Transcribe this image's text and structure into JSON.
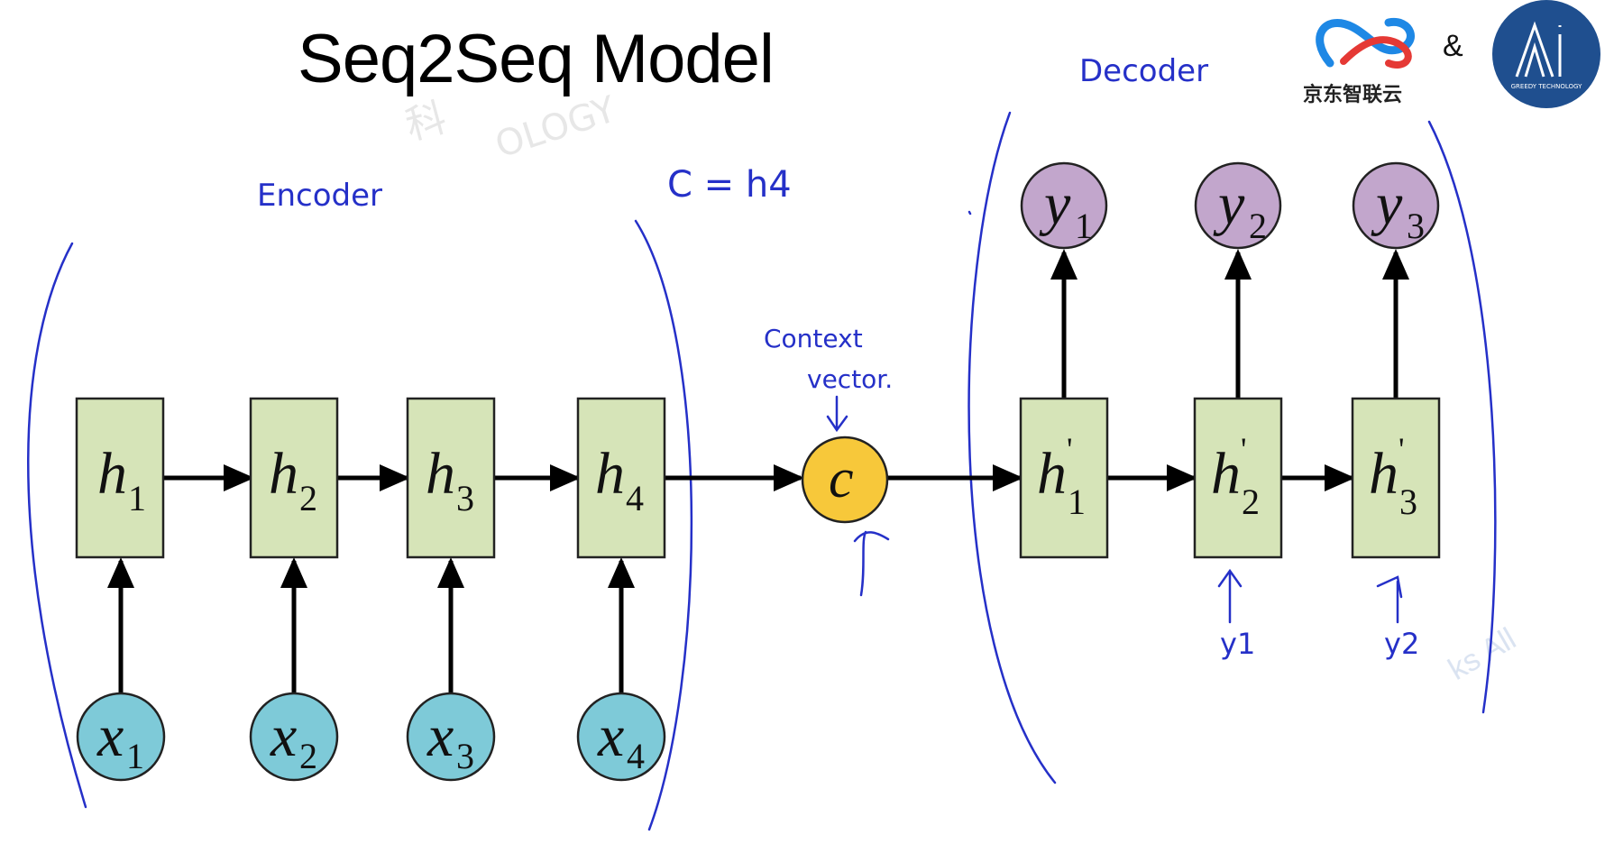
{
  "title": "Seq2Seq Model",
  "logos": {
    "jd_text": "京东智联云",
    "ampersand": "&",
    "greedy_sub": "GREEDY TECHNOLOGY"
  },
  "annotations": {
    "encoder": "Encoder",
    "decoder": "Decoder",
    "c_equals": "C = h4",
    "context_line1": "Context",
    "context_line2": "vector.",
    "feed_y1": "y1",
    "feed_y2": "y2"
  },
  "encoder": {
    "hidden": [
      {
        "main": "h",
        "sub": "1"
      },
      {
        "main": "h",
        "sub": "2"
      },
      {
        "main": "h",
        "sub": "3"
      },
      {
        "main": "h",
        "sub": "4"
      }
    ],
    "inputs": [
      {
        "main": "x",
        "sub": "1"
      },
      {
        "main": "x",
        "sub": "2"
      },
      {
        "main": "x",
        "sub": "3"
      },
      {
        "main": "x",
        "sub": "4"
      }
    ]
  },
  "context": {
    "label": "c"
  },
  "decoder": {
    "hidden": [
      {
        "main": "h",
        "prime": "'",
        "sub": "1"
      },
      {
        "main": "h",
        "prime": "'",
        "sub": "2"
      },
      {
        "main": "h",
        "prime": "'",
        "sub": "3"
      }
    ],
    "outputs": [
      {
        "main": "y",
        "sub": "1"
      },
      {
        "main": "y",
        "sub": "2"
      },
      {
        "main": "y",
        "sub": "3"
      }
    ]
  },
  "colors": {
    "hidden_fill": "#d6e4b8",
    "input_fill": "#7ecad8",
    "output_fill": "#c2a6cc",
    "context_fill": "#f7c83a",
    "ink": "#2530c8"
  },
  "watermark": {
    "text1": "科",
    "text2": "OLOGY",
    "text3": "ks All"
  }
}
